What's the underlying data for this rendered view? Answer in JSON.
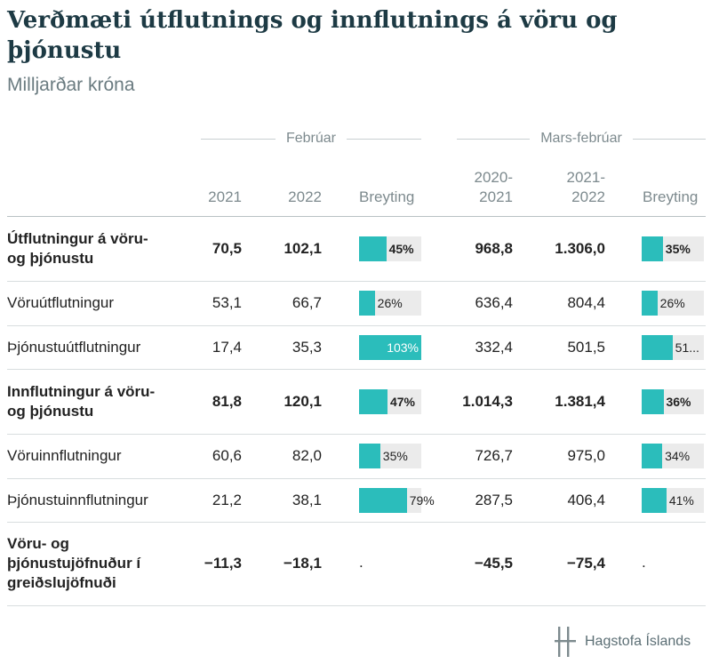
{
  "title": "Verðmæti útflutnings og innflutnings á vöru og þjónustu",
  "subtitle": "Milljarðar króna",
  "brand": "Hagstofa Íslands",
  "colors": {
    "bar": "#2bbdbb",
    "bar_bg": "#ebebeb",
    "title": "#1d3a44"
  },
  "chart_data": {
    "type": "table",
    "group_headers": [
      "Febrúar",
      "Mars-febrúar"
    ],
    "columns": [
      "2021",
      "2022",
      "Breyting",
      "2020-2021",
      "2021-2022",
      "Breyting"
    ],
    "col_labels": {
      "c1": "2021",
      "c2": "2022",
      "c3": "Breyting",
      "c4a": "2020-",
      "c4b": "2021",
      "c5a": "2021-",
      "c5b": "2022",
      "c6": "Breyting"
    },
    "rows": [
      {
        "label1": "Útflutningur á vöru-",
        "label2": "og þjónustu",
        "bold": true,
        "v2021": "70,5",
        "v2022": "102,1",
        "chg1": 45,
        "chg1_label": "45%",
        "p1": "968,8",
        "p2": "1.306,0",
        "chg2": 35,
        "chg2_label": "35%"
      },
      {
        "label1": "Vöruútflutningur",
        "label2": "",
        "bold": false,
        "v2021": "53,1",
        "v2022": "66,7",
        "chg1": 26,
        "chg1_label": "26%",
        "p1": "636,4",
        "p2": "804,4",
        "chg2": 26,
        "chg2_label": "26%"
      },
      {
        "label1": "Þjónustuútflutningur",
        "label2": "",
        "bold": false,
        "v2021": "17,4",
        "v2022": "35,3",
        "chg1": 103,
        "chg1_label": "103%",
        "p1": "332,4",
        "p2": "501,5",
        "chg2": 51,
        "chg2_label": "51..."
      },
      {
        "label1": "Innflutningur á vöru-",
        "label2": "og þjónustu",
        "bold": true,
        "v2021": "81,8",
        "v2022": "120,1",
        "chg1": 47,
        "chg1_label": "47%",
        "p1": "1.014,3",
        "p2": "1.381,4",
        "chg2": 36,
        "chg2_label": "36%"
      },
      {
        "label1": "Vöruinnflutningur",
        "label2": "",
        "bold": false,
        "v2021": "60,6",
        "v2022": "82,0",
        "chg1": 35,
        "chg1_label": "35%",
        "p1": "726,7",
        "p2": "975,0",
        "chg2": 34,
        "chg2_label": "34%"
      },
      {
        "label1": "Þjónustuinnflutningur",
        "label2": "",
        "bold": false,
        "v2021": "21,2",
        "v2022": "38,1",
        "chg1": 79,
        "chg1_label": "79%",
        "p1": "287,5",
        "p2": "406,4",
        "chg2": 41,
        "chg2_label": "41%"
      },
      {
        "label1": "Vöru- og",
        "label2": "þjónustujöfnuður í",
        "label3": "greiðslujöfnuði",
        "bold": true,
        "v2021": "−11,3",
        "v2022": "−18,1",
        "chg1": null,
        "chg1_label": ".",
        "p1": "−45,5",
        "p2": "−75,4",
        "chg2": null,
        "chg2_label": "."
      }
    ],
    "bar_max": 103
  }
}
